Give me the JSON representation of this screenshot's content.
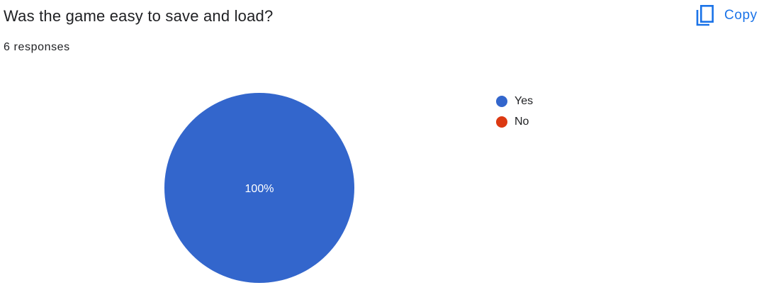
{
  "question": {
    "title": "Was the game easy to save and load?",
    "responses": "6 responses"
  },
  "toolbar": {
    "copy_label": "Copy",
    "copy_icon": "copy-icon",
    "accent_color": "#1a73e8"
  },
  "chart_data": {
    "type": "pie",
    "categories": [
      "Yes",
      "No"
    ],
    "values": [
      6,
      0
    ],
    "colors": [
      "#3366cc",
      "#dc3912"
    ],
    "data_labels": [
      "100%",
      ""
    ],
    "legend_position": "right"
  }
}
